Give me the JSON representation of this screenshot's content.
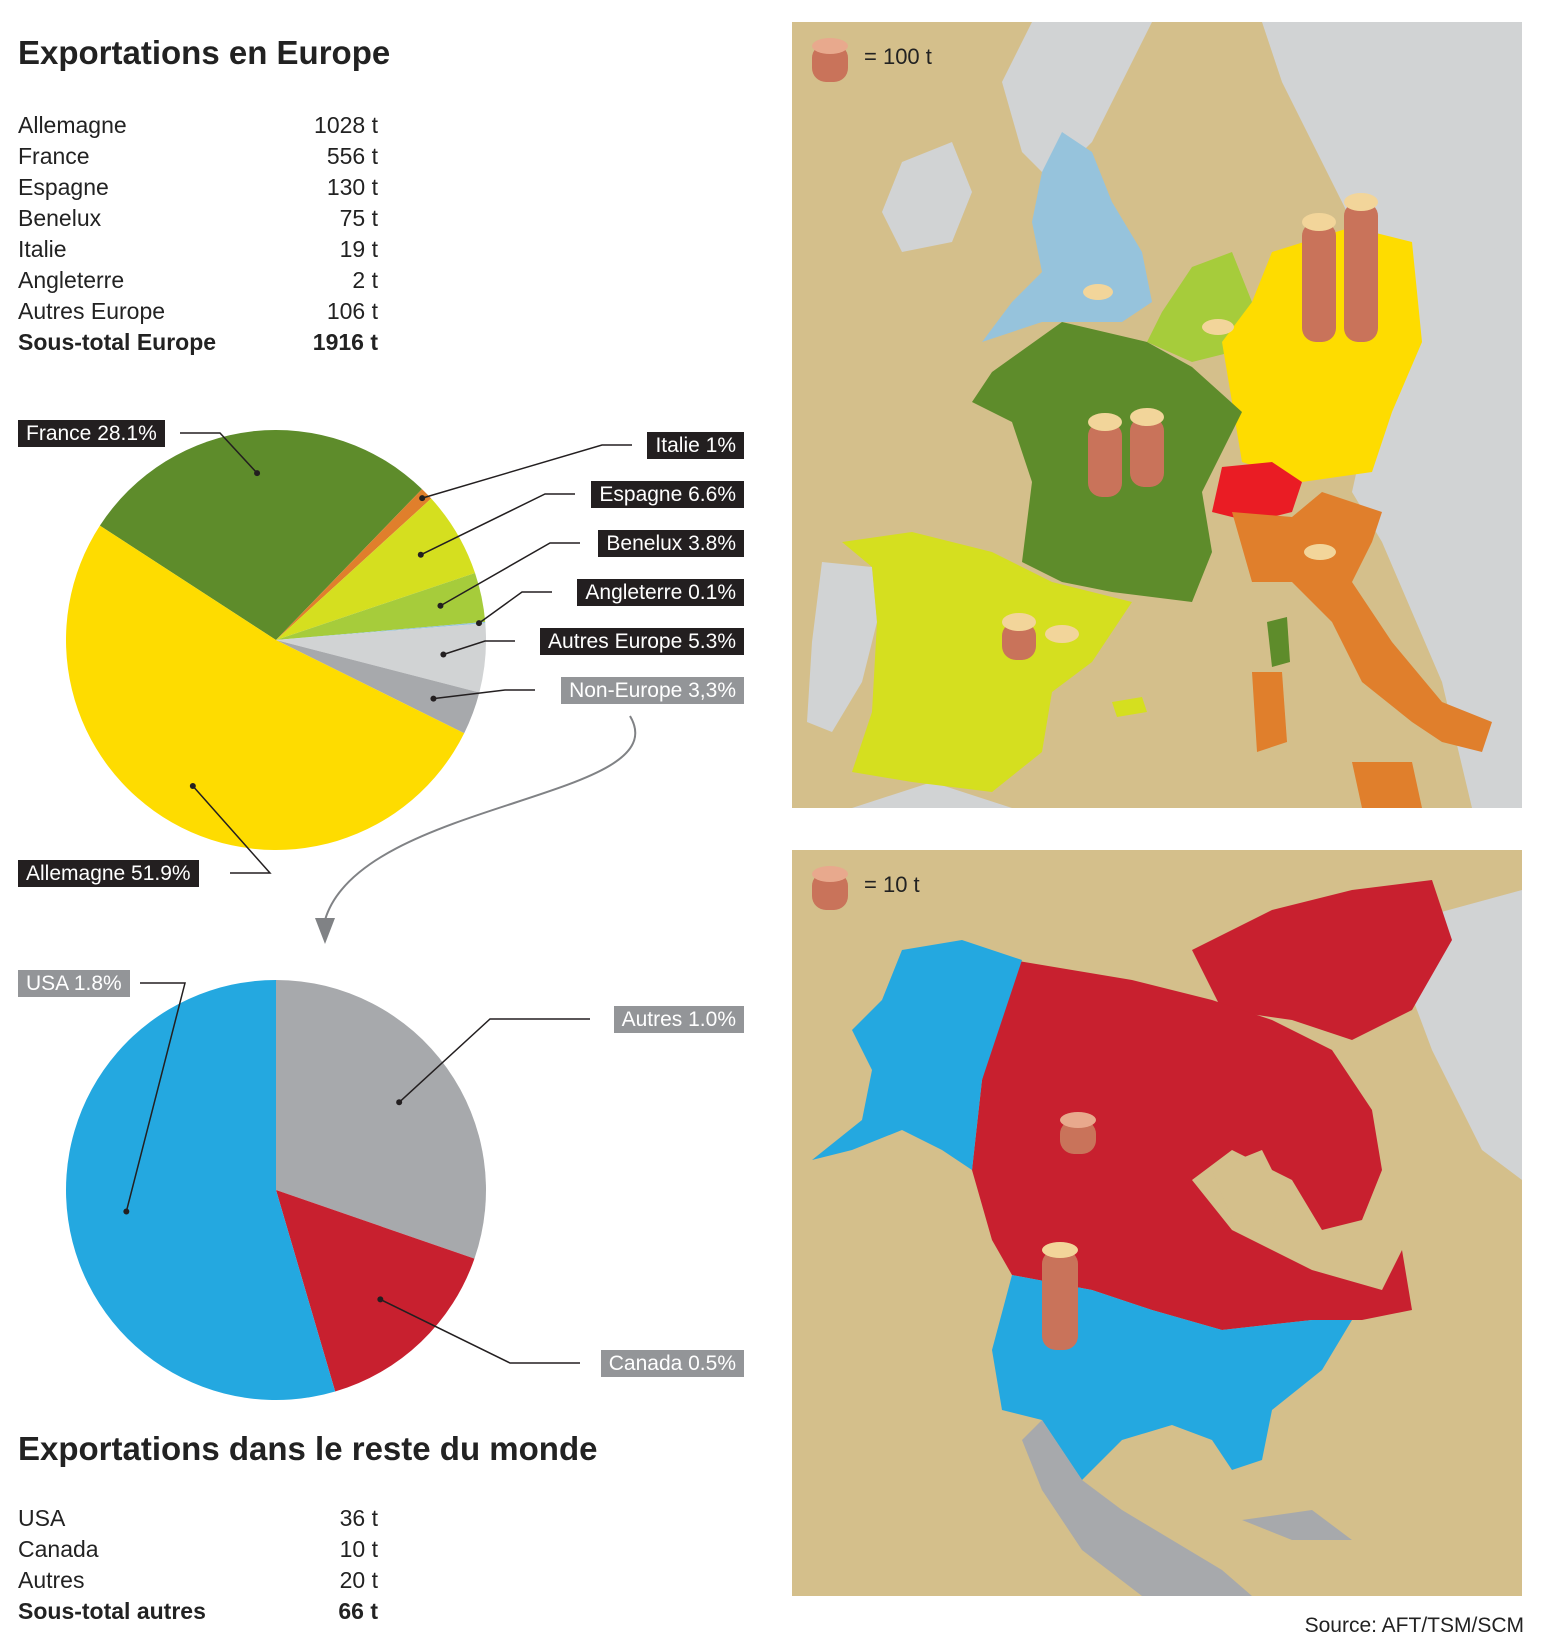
{
  "europe": {
    "title": "Exportations en Europe",
    "rows": [
      {
        "label": "Allemagne",
        "value": "1028 t"
      },
      {
        "label": "France",
        "value": "556 t"
      },
      {
        "label": "Espagne",
        "value": "130 t"
      },
      {
        "label": "Benelux",
        "value": "75 t"
      },
      {
        "label": "Italie",
        "value": "19 t"
      },
      {
        "label": "Angleterre",
        "value": "2 t"
      },
      {
        "label": "Autres Europe",
        "value": "106 t"
      }
    ],
    "total": {
      "label": "Sous-total Europe",
      "value": "1916 t"
    }
  },
  "world": {
    "title": "Exportations dans le reste du monde",
    "rows": [
      {
        "label": "USA",
        "value": "36 t"
      },
      {
        "label": "Canada",
        "value": "10 t"
      },
      {
        "label": "Autres",
        "value": "20 t"
      }
    ],
    "total": {
      "label": "Sous-total autres",
      "value": "66 t"
    }
  },
  "chart_data": [
    {
      "type": "pie",
      "slices": [
        {
          "label": "France 28.1%",
          "value": 28.1,
          "color": "#5e8c2b"
        },
        {
          "label": "Italie 1%",
          "value": 1.0,
          "color": "#e07f2c"
        },
        {
          "label": "Espagne 6.6%",
          "value": 6.6,
          "color": "#d5df1f"
        },
        {
          "label": "Benelux 3.8%",
          "value": 3.8,
          "color": "#a6cc3b"
        },
        {
          "label": "Angleterre 0.1%",
          "value": 0.1,
          "color": "#96c3dc"
        },
        {
          "label": "Autres Europe 5.3%",
          "value": 5.3,
          "color": "#d1d3d4"
        },
        {
          "label": "Non-Europe 3,3%",
          "value": 3.3,
          "color": "#a7a9ac"
        },
        {
          "label": "Allemagne 51.9%",
          "value": 51.9,
          "color": "#fedc00"
        }
      ]
    },
    {
      "type": "pie",
      "slices": [
        {
          "label": "Autres 1.0%",
          "value": 1.0,
          "color": "#a7a9ac"
        },
        {
          "label": "Canada 0.5%",
          "value": 0.5,
          "color": "#c8202f"
        },
        {
          "label": "USA 1.8%",
          "value": 1.8,
          "color": "#24a8e0"
        }
      ]
    }
  ],
  "maps": {
    "europe_legend": "= 100 t",
    "america_legend": "= 10 t"
  },
  "source": "Source: AFT/TSM/SCM"
}
